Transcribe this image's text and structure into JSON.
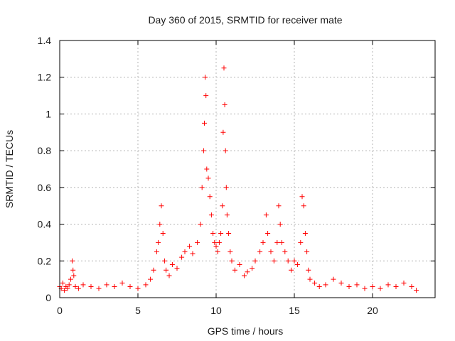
{
  "chart_data": {
    "type": "scatter",
    "title": "Day 360 of 2015, SRMTID for receiver mate",
    "xlabel": "GPS time / hours",
    "ylabel": "SRMTID / TECUs",
    "xlim": [
      0,
      24
    ],
    "ylim": [
      0,
      1.4
    ],
    "x_ticks": [
      0,
      5,
      10,
      15,
      20
    ],
    "x_tick_labels": [
      "0",
      "5",
      "10",
      "15",
      "20"
    ],
    "y_ticks": [
      0,
      0.2,
      0.4,
      0.6,
      0.8,
      1.0,
      1.2,
      1.4
    ],
    "y_tick_labels": [
      "0",
      "0.2",
      "0.4",
      "0.6",
      "0.8",
      "1",
      "1.2",
      "1.4"
    ],
    "grid": true,
    "marker": "+",
    "color": "#ff0000",
    "series": [
      {
        "name": "SRMTID",
        "x": [
          0.0,
          0.1,
          0.2,
          0.3,
          0.4,
          0.5,
          0.6,
          0.7,
          0.8,
          0.85,
          0.9,
          1.0,
          1.2,
          1.5,
          2.0,
          2.5,
          3.0,
          3.5,
          4.0,
          4.5,
          5.0,
          5.5,
          5.8,
          6.0,
          6.2,
          6.3,
          6.4,
          6.5,
          6.6,
          6.7,
          6.8,
          7.0,
          7.2,
          7.5,
          7.8,
          8.0,
          8.3,
          8.5,
          8.8,
          9.0,
          9.1,
          9.2,
          9.25,
          9.3,
          9.35,
          9.4,
          9.5,
          9.6,
          9.7,
          9.8,
          9.9,
          10.0,
          10.1,
          10.2,
          10.3,
          10.4,
          10.45,
          10.5,
          10.55,
          10.6,
          10.65,
          10.7,
          10.8,
          10.9,
          11.0,
          11.2,
          11.5,
          11.8,
          12.0,
          12.3,
          12.5,
          12.8,
          13.0,
          13.2,
          13.3,
          13.5,
          13.7,
          13.9,
          14.0,
          14.1,
          14.2,
          14.4,
          14.6,
          14.8,
          15.0,
          15.2,
          15.4,
          15.5,
          15.6,
          15.7,
          15.8,
          15.9,
          16.0,
          16.3,
          16.6,
          17.0,
          17.5,
          18.0,
          18.5,
          19.0,
          19.5,
          20.0,
          20.5,
          21.0,
          21.5,
          22.0,
          22.5,
          22.8
        ],
        "y": [
          0.06,
          0.05,
          0.08,
          0.04,
          0.06,
          0.05,
          0.07,
          0.1,
          0.2,
          0.15,
          0.12,
          0.06,
          0.05,
          0.07,
          0.06,
          0.05,
          0.07,
          0.06,
          0.08,
          0.06,
          0.05,
          0.07,
          0.1,
          0.15,
          0.25,
          0.3,
          0.4,
          0.5,
          0.35,
          0.2,
          0.15,
          0.12,
          0.18,
          0.16,
          0.22,
          0.25,
          0.28,
          0.24,
          0.3,
          0.4,
          0.6,
          0.8,
          0.95,
          1.2,
          1.1,
          0.7,
          0.65,
          0.55,
          0.45,
          0.35,
          0.3,
          0.28,
          0.25,
          0.3,
          0.35,
          0.5,
          0.9,
          1.25,
          1.05,
          0.8,
          0.6,
          0.45,
          0.35,
          0.25,
          0.2,
          0.15,
          0.18,
          0.12,
          0.14,
          0.16,
          0.2,
          0.25,
          0.3,
          0.45,
          0.35,
          0.25,
          0.2,
          0.3,
          0.5,
          0.4,
          0.3,
          0.25,
          0.2,
          0.15,
          0.2,
          0.18,
          0.3,
          0.55,
          0.5,
          0.35,
          0.25,
          0.15,
          0.1,
          0.08,
          0.06,
          0.07,
          0.1,
          0.08,
          0.06,
          0.07,
          0.05,
          0.06,
          0.05,
          0.07,
          0.06,
          0.08,
          0.06,
          0.04
        ]
      }
    ]
  }
}
